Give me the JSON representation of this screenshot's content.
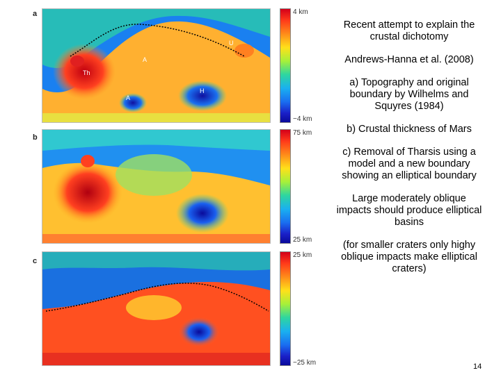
{
  "panels": [
    {
      "letter": "a",
      "top_scale": "4 km",
      "bottom_scale": "−4 km"
    },
    {
      "letter": "b",
      "top_scale": "75 km",
      "bottom_scale": "25 km"
    },
    {
      "letter": "c",
      "top_scale": "25 km",
      "bottom_scale": "−25 km"
    }
  ],
  "map_labels": {
    "u": "U",
    "th": "Th",
    "a": "A",
    "h": "H",
    "a2": "A"
  },
  "notes": [
    "Recent attempt to explain the crustal dichotomy",
    "Andrews-Hanna et al. (2008)",
    "a) Topography and original boundary by Wilhelms and Squyres (1984)",
    "b)  Crustal thickness of Mars",
    "c)  Removal of Tharsis using a model and a new boundary showing an elliptical boundary",
    "Large moderately oblique impacts should produce elliptical basins",
    "(for smaller craters only highy oblique impacts make elliptical craters)"
  ],
  "page_number": "14",
  "colors": {
    "high": "#d4001a",
    "mid": "#ffe01a",
    "low": "#0a0a9a"
  }
}
